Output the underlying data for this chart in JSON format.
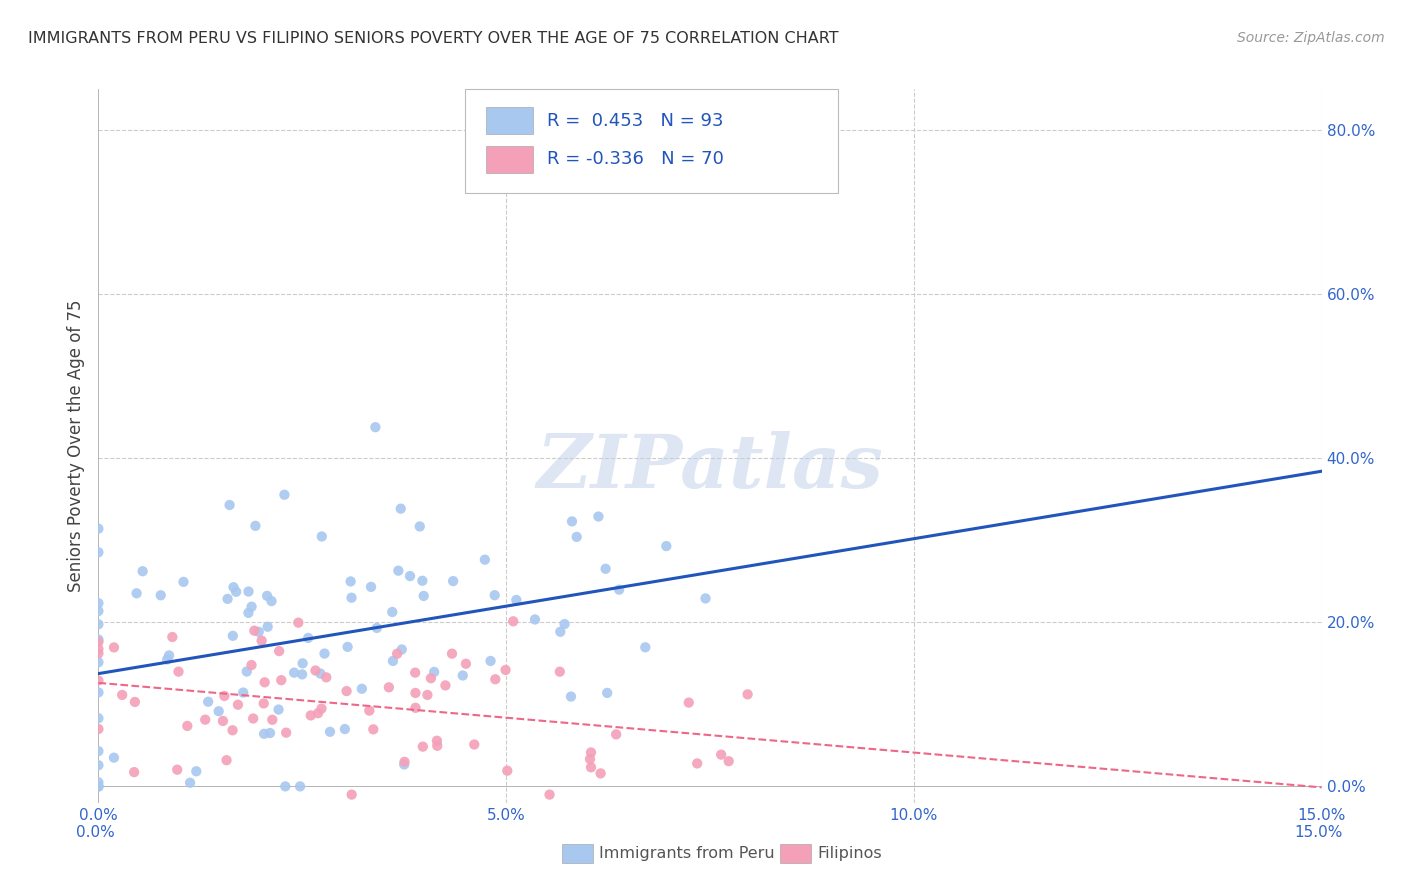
{
  "title": "IMMIGRANTS FROM PERU VS FILIPINO SENIORS POVERTY OVER THE AGE OF 75 CORRELATION CHART",
  "source": "Source: ZipAtlas.com",
  "ylabel": "Seniors Poverty Over the Age of 75",
  "x_min": 0.0,
  "x_max": 0.15,
  "y_min": -0.02,
  "y_max": 0.85,
  "x_ticks": [
    0.0,
    0.05,
    0.1,
    0.15
  ],
  "y_ticks": [
    0.0,
    0.2,
    0.4,
    0.6,
    0.8
  ],
  "blue_color": "#A8C8F0",
  "pink_color": "#F4A0B8",
  "blue_line_color": "#2255BB",
  "pink_line_color": "#EE6688",
  "R_blue": 0.453,
  "N_blue": 93,
  "R_pink": -0.336,
  "N_pink": 70,
  "legend_labels": [
    "Immigrants from Peru",
    "Filipinos"
  ],
  "watermark": "ZIPatlas",
  "background_color": "#FFFFFF",
  "grid_color": "#CCCCCC",
  "title_color": "#333333",
  "tick_label_color": "#3366CC"
}
